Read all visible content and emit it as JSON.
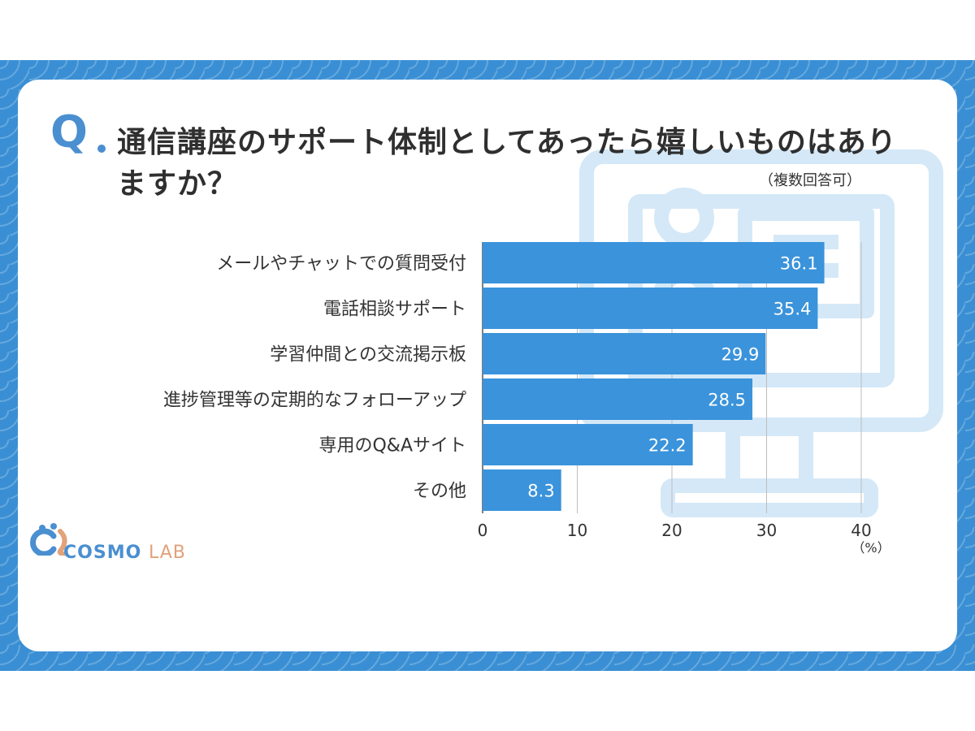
{
  "question": {
    "mark": "Q",
    "title": "通信講座のサポート体制としてあったら嬉しいものはありますか？",
    "note": "（複数回答可）"
  },
  "colors": {
    "bar": "#3a93db",
    "accent": "#4a8fd0",
    "band": "#3a8fd4",
    "logo_lab": "#e2a27a"
  },
  "chart_data": {
    "type": "bar",
    "orientation": "horizontal",
    "categories": [
      "メールやチャットでの質問受付",
      "電話相談サポート",
      "学習仲間との交流掲示板",
      "進捗管理等の定期的なフォローアップ",
      "専用のQ&Aサイト",
      "その他"
    ],
    "values": [
      36.1,
      35.4,
      29.9,
      28.5,
      22.2,
      8.3
    ],
    "value_labels": [
      "36.1",
      "35.4",
      "29.9",
      "28.5",
      "22.2",
      "8.3"
    ],
    "xlim": [
      0,
      40
    ],
    "ticks": [
      "0",
      "10",
      "20",
      "30",
      "40"
    ],
    "unit": "（%）",
    "grid": true
  },
  "logo": {
    "name": "COSMO",
    "suffix": "LAB"
  }
}
